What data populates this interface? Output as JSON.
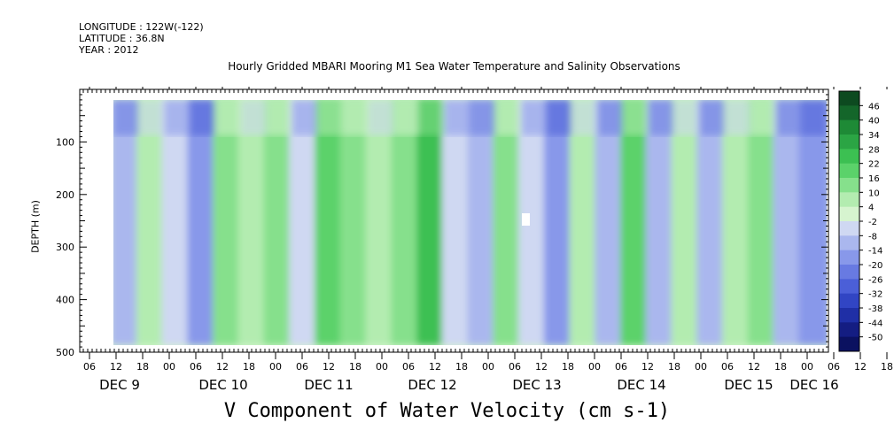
{
  "header": {
    "longitude": "LONGITUDE : 122W(-122)",
    "latitude": "LATITUDE : 36.8N",
    "year": "YEAR : 2012"
  },
  "chart_data": {
    "type": "heatmap",
    "title": "Hourly Gridded MBARI Mooring M1 Sea Water Temperature and Salinity Observations",
    "xlabel": "V Component of Water Velocity (cm s-1)",
    "ylabel": "DEPTH (m)",
    "ylim": [
      500,
      0
    ],
    "y_ticks": [
      100,
      200,
      300,
      400,
      500
    ],
    "x_hour_ticks": [
      "06",
      "12",
      "18",
      "00",
      "06",
      "12",
      "18",
      "00",
      "06",
      "12",
      "18",
      "00",
      "06",
      "12",
      "18",
      "00",
      "06",
      "12",
      "18",
      "00",
      "06",
      "12",
      "18",
      "00",
      "06",
      "12",
      "18",
      "00",
      "06",
      "12",
      "18",
      "00"
    ],
    "x_day_labels": [
      "DEC  9",
      "DEC 10",
      "DEC 11",
      "DEC 12",
      "DEC 13",
      "DEC 14",
      "DEC 15",
      "DEC 16"
    ],
    "colorbar_levels": [
      "46",
      "40",
      "34",
      "28",
      "22",
      "16",
      "10",
      "4",
      "-2",
      "-8",
      "-14",
      "-20",
      "-26",
      "-32",
      "-38",
      "-44",
      "-50"
    ],
    "colorbar_colors": [
      "#0d4a20",
      "#14662a",
      "#1e8a36",
      "#2ba544",
      "#3cc052",
      "#5bd26a",
      "#86e08c",
      "#b3ecb0",
      "#d6f4cf",
      "#cfd8f2",
      "#aab7ee",
      "#8898ea",
      "#687ae2",
      "#4b5fd8",
      "#3145c4",
      "#1f2fa6",
      "#141d82",
      "#0b1160"
    ],
    "series": [
      {
        "x": "DEC 9 06",
        "depth_band": "0-500",
        "value": -14
      },
      {
        "x": "DEC 9 12",
        "depth_band": "0-500",
        "value": 4
      },
      {
        "x": "DEC 9 18",
        "depth_band": "0-500",
        "value": -8
      },
      {
        "x": "DEC 10 00",
        "depth_band": "0-500",
        "value": -20
      },
      {
        "x": "DEC 10 06",
        "depth_band": "0-500",
        "value": 10
      },
      {
        "x": "DEC 10 12",
        "depth_band": "0-500",
        "value": 4
      },
      {
        "x": "DEC 10 18",
        "depth_band": "0-500",
        "value": 10
      },
      {
        "x": "DEC 11 00",
        "depth_band": "0-500",
        "value": -8
      },
      {
        "x": "DEC 11 06",
        "depth_band": "0-500",
        "value": 16
      },
      {
        "x": "DEC 11 12",
        "depth_band": "0-500",
        "value": 10
      },
      {
        "x": "DEC 11 18",
        "depth_band": "0-500",
        "value": 4
      },
      {
        "x": "DEC 12 00",
        "depth_band": "0-500",
        "value": 10
      },
      {
        "x": "DEC 12 06",
        "depth_band": "0-500",
        "value": 22
      },
      {
        "x": "DEC 12 12",
        "depth_band": "0-500",
        "value": -8
      },
      {
        "x": "DEC 12 18",
        "depth_band": "0-500",
        "value": -14
      },
      {
        "x": "DEC 13 00",
        "depth_band": "0-500",
        "value": 10
      },
      {
        "x": "DEC 13 06",
        "depth_band": "0-500",
        "value": -8
      },
      {
        "x": "DEC 13 12",
        "depth_band": "0-500",
        "value": -20
      },
      {
        "x": "DEC 13 18",
        "depth_band": "0-500",
        "value": 4
      },
      {
        "x": "DEC 14 00",
        "depth_band": "0-500",
        "value": -14
      },
      {
        "x": "DEC 14 06",
        "depth_band": "0-500",
        "value": 16
      },
      {
        "x": "DEC 14 12",
        "depth_band": "0-500",
        "value": -14
      },
      {
        "x": "DEC 14 18",
        "depth_band": "0-500",
        "value": 4
      },
      {
        "x": "DEC 15 00",
        "depth_band": "0-500",
        "value": -14
      },
      {
        "x": "DEC 15 06",
        "depth_band": "0-500",
        "value": 4
      },
      {
        "x": "DEC 15 12",
        "depth_band": "0-500",
        "value": 10
      },
      {
        "x": "DEC 15 18",
        "depth_band": "0-500",
        "value": -14
      },
      {
        "x": "DEC 16 00",
        "depth_band": "0-500",
        "value": -20
      }
    ]
  }
}
